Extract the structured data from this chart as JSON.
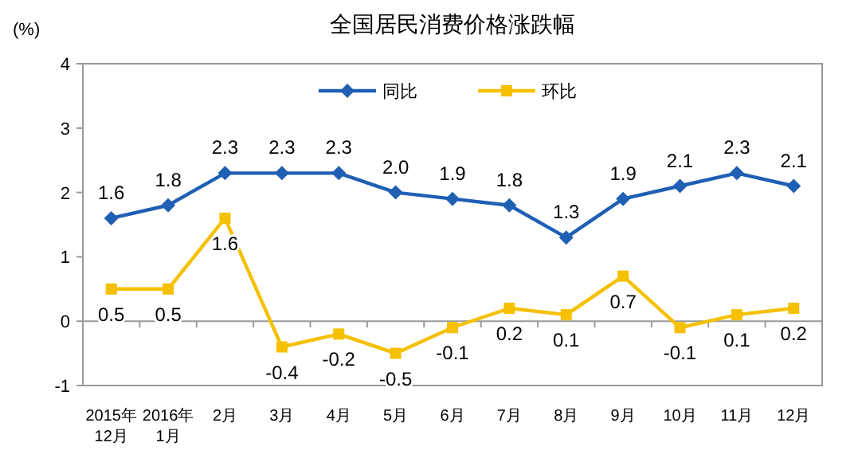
{
  "chart_data": {
    "type": "line",
    "title": "全国居民消费价格涨跌幅",
    "ylabel": "(%)",
    "categories": [
      "2015年\n12月",
      "2016年\n1月",
      "2月",
      "3月",
      "4月",
      "5月",
      "6月",
      "7月",
      "8月",
      "9月",
      "10月",
      "11月",
      "12月"
    ],
    "series": [
      {
        "name": "同比",
        "color": "#1f5fb4",
        "marker": "diamond",
        "values": [
          1.6,
          1.8,
          2.3,
          2.3,
          2.3,
          2.0,
          1.9,
          1.8,
          1.3,
          1.9,
          2.1,
          2.3,
          2.1
        ],
        "value_labels": [
          "1.6",
          "1.8",
          "2.3",
          "2.3",
          "2.3",
          "2.0",
          "1.9",
          "1.8",
          "1.3",
          "1.9",
          "2.1",
          "2.3",
          "2.1"
        ]
      },
      {
        "name": "环比",
        "color": "#f5c000",
        "marker": "square",
        "values": [
          0.5,
          0.5,
          1.6,
          -0.4,
          -0.2,
          -0.5,
          -0.1,
          0.2,
          0.1,
          0.7,
          -0.1,
          0.1,
          0.2
        ],
        "value_labels": [
          "0.5",
          "0.5",
          "1.6",
          "-0.4",
          "-0.2",
          "-0.5",
          "-0.1",
          "0.2",
          "0.1",
          "0.7",
          "-0.1",
          "0.1",
          "0.2"
        ]
      }
    ],
    "ylim": [
      -1,
      4
    ],
    "yticks": [
      -1,
      0,
      1,
      2,
      3,
      4
    ],
    "legend": "top"
  }
}
